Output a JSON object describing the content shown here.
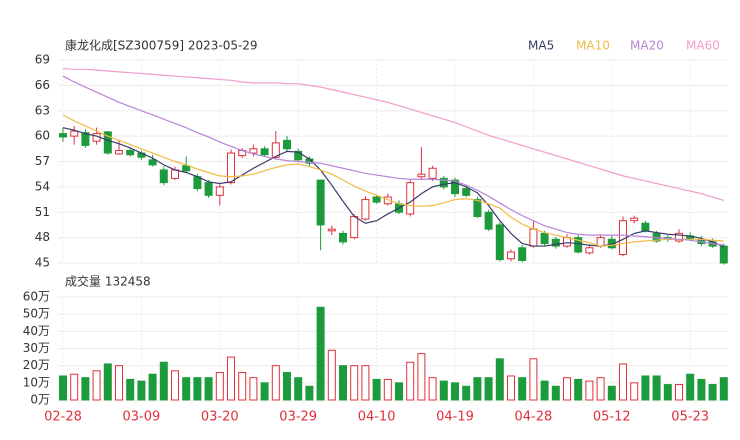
{
  "chart_data": [
    {
      "type": "candlestick",
      "title": "康龙化成[SZ300759] 2023-05-29",
      "up_color": "#e0303a",
      "down_color": "#1c9b3c",
      "ylim": [
        45,
        69
      ],
      "yticks": [
        45,
        48,
        51,
        54,
        57,
        60,
        63,
        66,
        69
      ],
      "grid": true,
      "open": [
        60.3,
        60.0,
        60.4,
        59.4,
        60.5,
        57.9,
        58.3,
        58.0,
        57.2,
        56.0,
        55.0,
        56.5,
        55.2,
        54.5,
        53.0,
        54.5,
        57.7,
        58.0,
        58.5,
        57.5,
        59.5,
        58.2,
        57.3,
        54.8,
        48.8,
        48.5,
        48.0,
        50.2,
        52.8,
        52.0,
        52.0,
        50.8,
        55.2,
        55.0,
        55.0,
        54.8,
        53.8,
        52.5,
        51.0,
        49.5,
        45.5,
        46.8,
        47.0,
        48.5,
        47.8,
        47.0,
        48.0,
        46.2,
        47.0,
        47.8,
        46.0,
        50.0,
        49.7,
        48.5,
        48.0,
        47.6,
        48.2,
        47.8,
        47.5,
        47.0
      ],
      "high": [
        61.0,
        61.2,
        60.8,
        61.0,
        60.6,
        59.6,
        58.6,
        58.3,
        57.8,
        56.4,
        56.4,
        57.6,
        55.5,
        54.8,
        54.3,
        58.4,
        58.6,
        59.0,
        58.8,
        60.6,
        60.0,
        58.5,
        57.6,
        54.8,
        49.4,
        48.8,
        50.8,
        52.9,
        53.1,
        53.2,
        52.4,
        54.8,
        58.7,
        56.5,
        55.3,
        55.1,
        54.2,
        52.8,
        51.3,
        49.8,
        46.6,
        47.1,
        50.0,
        48.8,
        48.1,
        48.4,
        48.3,
        47.2,
        48.4,
        48.2,
        50.5,
        50.6,
        50.0,
        48.8,
        48.3,
        49.0,
        48.6,
        48.2,
        47.9,
        47.3
      ],
      "low": [
        59.3,
        59.0,
        58.6,
        59.0,
        57.8,
        57.8,
        57.6,
        57.2,
        56.4,
        54.2,
        54.8,
        55.7,
        53.5,
        52.7,
        51.8,
        54.3,
        57.4,
        57.6,
        57.6,
        57.3,
        58.2,
        57.0,
        56.4,
        46.5,
        48.3,
        47.2,
        47.8,
        50.0,
        52.0,
        51.8,
        50.8,
        50.5,
        54.8,
        54.7,
        53.7,
        52.8,
        52.8,
        50.3,
        48.8,
        45.2,
        45.2,
        45.1,
        46.8,
        47.0,
        46.7,
        46.8,
        46.1,
        46.0,
        46.8,
        46.6,
        45.8,
        49.7,
        48.6,
        47.4,
        47.5,
        47.4,
        47.6,
        47.0,
        46.8,
        44.8
      ],
      "close": [
        59.9,
        60.6,
        58.9,
        60.3,
        58.0,
        58.3,
        57.8,
        57.5,
        56.6,
        54.5,
        56.0,
        55.9,
        53.8,
        53.0,
        54.0,
        58.0,
        58.3,
        58.5,
        57.8,
        59.2,
        58.5,
        57.2,
        56.8,
        49.5,
        49.0,
        47.5,
        50.5,
        52.5,
        52.2,
        52.8,
        51.0,
        54.5,
        55.5,
        56.2,
        54.0,
        53.2,
        53.0,
        50.5,
        49.0,
        45.4,
        46.3,
        45.3,
        49.0,
        47.3,
        47.0,
        48.0,
        46.3,
        46.8,
        48.0,
        46.8,
        50.0,
        50.3,
        48.8,
        47.6,
        47.8,
        48.5,
        47.9,
        47.3,
        47.0,
        45.0
      ],
      "series": [
        {
          "name": "MA5",
          "color": "#3a3a6a",
          "values": [
            61.0,
            60.7,
            60.3,
            60.0,
            59.5,
            59.1,
            58.6,
            58.0,
            57.4,
            56.6,
            56.0,
            55.7,
            55.2,
            54.6,
            54.4,
            54.6,
            55.4,
            56.2,
            56.9,
            57.6,
            58.2,
            58.1,
            57.3,
            56.0,
            54.2,
            52.3,
            50.5,
            49.7,
            50.0,
            50.8,
            51.5,
            52.2,
            53.2,
            54.0,
            54.3,
            54.5,
            54.0,
            53.3,
            51.8,
            50.0,
            48.5,
            47.3,
            47.0,
            47.0,
            47.2,
            47.4,
            47.3,
            47.1,
            47.0,
            47.2,
            47.8,
            48.5,
            48.8,
            48.6,
            48.4,
            48.3,
            48.2,
            47.9,
            47.5,
            46.9
          ]
        },
        {
          "name": "MA10",
          "color": "#f2bb45",
          "values": [
            62.5,
            61.8,
            61.2,
            60.6,
            60.0,
            59.5,
            59.0,
            58.5,
            58.0,
            57.5,
            57.0,
            56.6,
            56.1,
            55.7,
            55.3,
            55.2,
            55.3,
            55.5,
            55.9,
            56.3,
            56.6,
            56.7,
            56.4,
            56.0,
            55.5,
            54.8,
            54.1,
            53.5,
            53.0,
            52.5,
            52.0,
            51.8,
            51.7,
            51.8,
            52.1,
            52.5,
            52.6,
            52.4,
            52.0,
            51.5,
            50.4,
            49.6,
            49.0,
            48.6,
            48.3,
            48.0,
            47.7,
            47.4,
            47.0,
            47.1,
            47.3,
            47.5,
            47.6,
            47.7,
            47.8,
            47.8,
            47.8,
            47.8,
            47.7,
            47.6
          ]
        },
        {
          "name": "MA20",
          "color": "#b884d8",
          "values": [
            67.1,
            66.4,
            65.8,
            65.2,
            64.6,
            64.0,
            63.5,
            63.0,
            62.5,
            62.0,
            61.5,
            61.0,
            60.4,
            59.9,
            59.3,
            58.8,
            58.3,
            57.9,
            57.6,
            57.3,
            57.1,
            57.0,
            56.9,
            56.8,
            56.5,
            56.2,
            55.9,
            55.6,
            55.4,
            55.2,
            55.0,
            54.9,
            54.9,
            54.9,
            54.8,
            54.7,
            54.2,
            53.6,
            52.9,
            52.1,
            51.3,
            50.6,
            50.0,
            49.4,
            49.0,
            48.6,
            48.4,
            48.3,
            48.3,
            48.3,
            48.3,
            48.2,
            48.1,
            48.0,
            47.9,
            47.8,
            47.7,
            47.5,
            47.3,
            47.1
          ]
        },
        {
          "name": "MA60",
          "color": "#f29ccb",
          "values": [
            68.0,
            67.9,
            67.9,
            67.8,
            67.7,
            67.6,
            67.5,
            67.4,
            67.3,
            67.2,
            67.1,
            67.0,
            66.9,
            66.8,
            66.7,
            66.6,
            66.4,
            66.3,
            66.3,
            66.3,
            66.2,
            66.2,
            66.0,
            65.8,
            65.5,
            65.2,
            64.9,
            64.6,
            64.3,
            64.0,
            63.6,
            63.2,
            62.8,
            62.4,
            62.0,
            61.6,
            61.1,
            60.6,
            60.1,
            59.7,
            59.3,
            58.9,
            58.5,
            58.1,
            57.7,
            57.3,
            56.9,
            56.5,
            56.1,
            55.7,
            55.3,
            55.0,
            54.7,
            54.4,
            54.1,
            53.8,
            53.5,
            53.2,
            52.8,
            52.4
          ]
        }
      ]
    },
    {
      "type": "bar",
      "title": "成交量 132458",
      "tick_color": "#e0303a",
      "ylim": [
        0,
        60
      ],
      "yticks": [
        {
          "value": 0,
          "label": "0万"
        },
        {
          "value": 10,
          "label": "10万"
        },
        {
          "value": 20,
          "label": "20万"
        },
        {
          "value": 30,
          "label": "30万"
        },
        {
          "value": 40,
          "label": "40万"
        },
        {
          "value": 50,
          "label": "50万"
        },
        {
          "value": 60,
          "label": "60万"
        }
      ],
      "categories": [
        "02-28",
        null,
        null,
        null,
        null,
        null,
        null,
        "03-09",
        null,
        null,
        null,
        null,
        null,
        null,
        "03-20",
        null,
        null,
        null,
        null,
        null,
        null,
        "03-29",
        null,
        null,
        null,
        null,
        null,
        null,
        "04-10",
        null,
        null,
        null,
        null,
        null,
        null,
        "04-19",
        null,
        null,
        null,
        null,
        null,
        null,
        "04-28",
        null,
        null,
        null,
        null,
        null,
        null,
        "05-12",
        null,
        null,
        null,
        null,
        null,
        null,
        "05-23",
        null,
        null,
        null
      ],
      "values": [
        14,
        15,
        13,
        17,
        21,
        20,
        12,
        11,
        15,
        22,
        17,
        13,
        13,
        13,
        16,
        25,
        16,
        13,
        10,
        20,
        16,
        13,
        8,
        54,
        29,
        20,
        20,
        20,
        12,
        12,
        10,
        22,
        27,
        13,
        11,
        10,
        8,
        13,
        13,
        24,
        14,
        13,
        24,
        11,
        8,
        13,
        12,
        11,
        13,
        8,
        21,
        10,
        14,
        14,
        9,
        9,
        15,
        12,
        9,
        13
      ]
    }
  ]
}
